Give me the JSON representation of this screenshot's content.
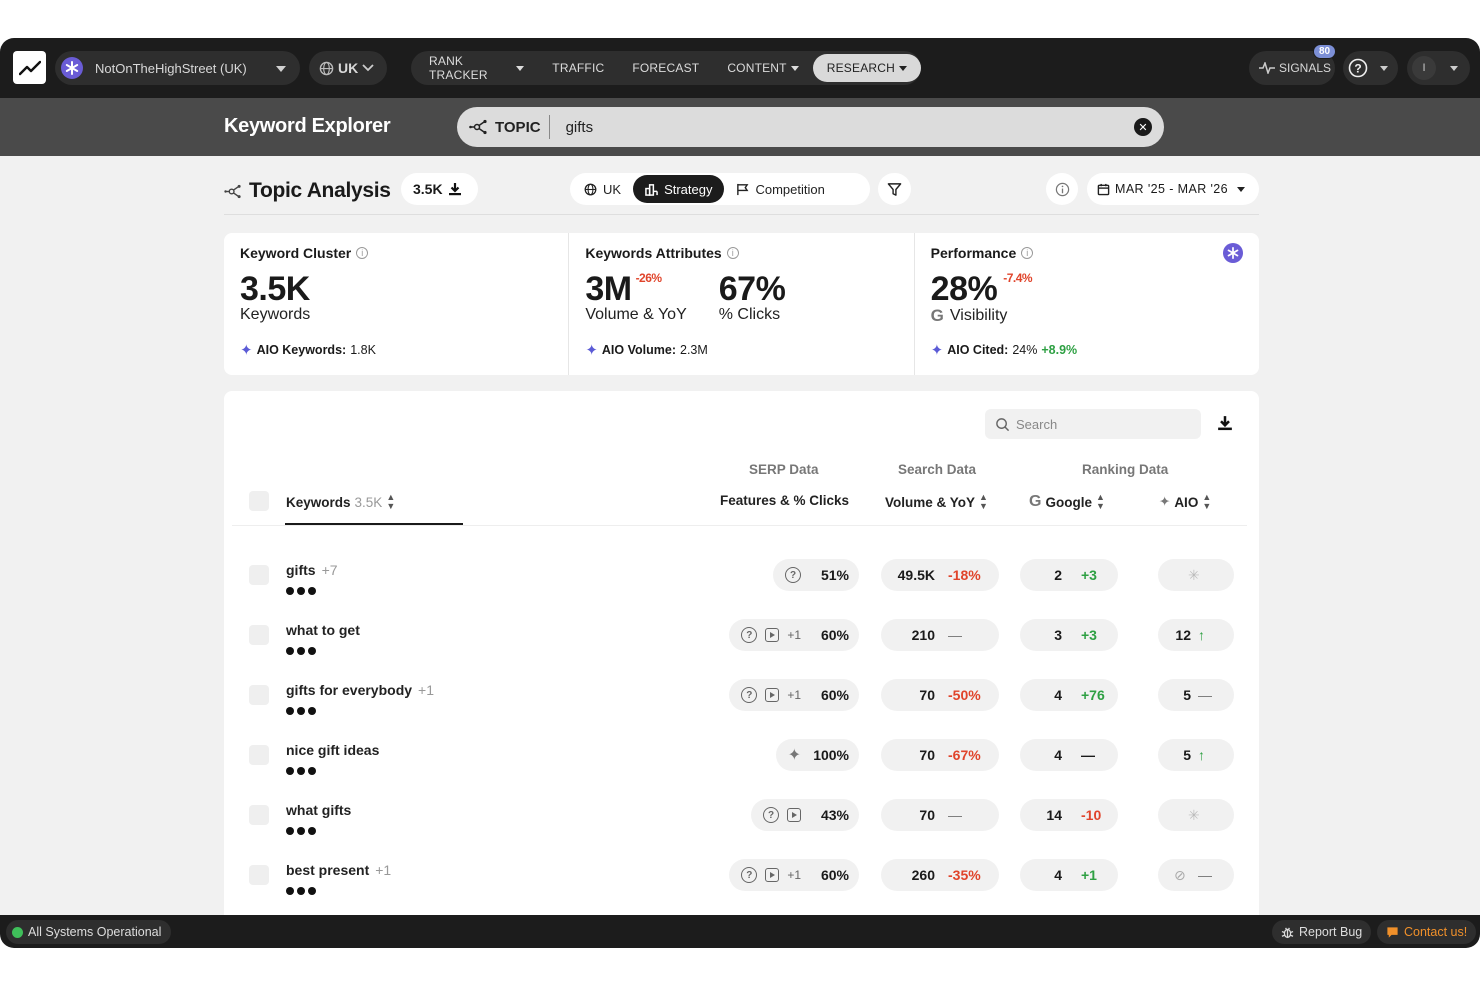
{
  "nav": {
    "project": "NotOnTheHighStreet (UK)",
    "region": "UK",
    "menu": [
      {
        "label": "RANK TRACKER",
        "caret": true,
        "active": false
      },
      {
        "label": "TRAFFIC",
        "caret": false,
        "active": false
      },
      {
        "label": "FORECAST",
        "caret": false,
        "active": false
      },
      {
        "label": "CONTENT",
        "caret": true,
        "active": false
      },
      {
        "label": "RESEARCH",
        "caret": true,
        "active": true
      }
    ],
    "signals_label": "SIGNALS",
    "signals_badge": "80",
    "user_initial": "I"
  },
  "subheader": {
    "title": "Keyword Explorer",
    "search_mode": "TOPIC",
    "search_query": "gifts"
  },
  "analysis": {
    "title": "Topic Analysis",
    "count": "3.5K",
    "region_tab": "UK",
    "tabs": [
      "Strategy",
      "Competition"
    ],
    "active_tab": "Strategy",
    "date_range": "MAR '25 - MAR '26"
  },
  "cards": {
    "cluster": {
      "title": "Keyword Cluster",
      "value": "3.5K",
      "sub": "Keywords",
      "aio_label": "AIO Keywords:",
      "aio_value": "1.8K"
    },
    "attributes": {
      "title": "Keywords Attributes",
      "volume": "3M",
      "volume_delta": "-26%",
      "volume_sub": "Volume & YoY",
      "clicks": "67%",
      "clicks_sub": "% Clicks",
      "aio_label": "AIO Volume:",
      "aio_value": "2.3M"
    },
    "performance": {
      "title": "Performance",
      "value": "28%",
      "delta": "-7.4%",
      "sub": "Visibility",
      "aio_label": "AIO Cited:",
      "aio_value": "24%",
      "aio_delta": "+8.9%"
    }
  },
  "table": {
    "search_placeholder": "Search",
    "groups": {
      "serp": "SERP Data",
      "search": "Search Data",
      "ranking": "Ranking Data"
    },
    "headers": {
      "keywords": "Keywords",
      "keywords_count": "3.5K",
      "features": "Features & % Clicks",
      "volume": "Volume & YoY",
      "google": "Google",
      "aio": "AIO"
    },
    "rows": [
      {
        "keyword": "gifts",
        "extra": "+7",
        "serp_icons": [
          "help"
        ],
        "serp_extra": "",
        "clicks": "51%",
        "volume": "49.5K",
        "yoy": "-18%",
        "yoy_tone": "red",
        "google": "2",
        "google_delta": "+3",
        "google_tone": "green",
        "aio": "",
        "aio_delta": "",
        "aio_tone": "none"
      },
      {
        "keyword": "what to get",
        "extra": "",
        "serp_icons": [
          "help",
          "video"
        ],
        "serp_extra": "+1",
        "clicks": "60%",
        "volume": "210",
        "yoy": "—",
        "yoy_tone": "dash",
        "google": "3",
        "google_delta": "+3",
        "google_tone": "green",
        "aio": "12",
        "aio_delta": "↑",
        "aio_tone": "green"
      },
      {
        "keyword": "gifts for everybody",
        "extra": "+1",
        "serp_icons": [
          "help",
          "video"
        ],
        "serp_extra": "+1",
        "clicks": "60%",
        "volume": "70",
        "yoy": "-50%",
        "yoy_tone": "red",
        "google": "4",
        "google_delta": "+76",
        "google_tone": "green",
        "aio": "5",
        "aio_delta": "—",
        "aio_tone": "dash"
      },
      {
        "keyword": "nice gift ideas",
        "extra": "",
        "serp_icons": [
          "sparkle"
        ],
        "serp_extra": "",
        "clicks": "100%",
        "volume": "70",
        "yoy": "-67%",
        "yoy_tone": "red",
        "google": "4",
        "google_delta": "—",
        "google_tone": "dark",
        "aio": "5",
        "aio_delta": "↑",
        "aio_tone": "green"
      },
      {
        "keyword": "what gifts",
        "extra": "",
        "serp_icons": [
          "help",
          "video"
        ],
        "serp_extra": "",
        "clicks": "43%",
        "volume": "70",
        "yoy": "—",
        "yoy_tone": "dash",
        "google": "14",
        "google_delta": "-10",
        "google_tone": "red",
        "aio": "",
        "aio_delta": "",
        "aio_tone": "none"
      },
      {
        "keyword": "best present",
        "extra": "+1",
        "serp_icons": [
          "help",
          "video"
        ],
        "serp_extra": "+1",
        "clicks": "60%",
        "volume": "260",
        "yoy": "-35%",
        "yoy_tone": "red",
        "google": "4",
        "google_delta": "+1",
        "google_tone": "green",
        "aio": "",
        "aio_delta": "—",
        "aio_tone": "unlinked"
      }
    ]
  },
  "footer": {
    "status": "All Systems Operational",
    "report_bug": "Report Bug",
    "contact": "Contact us!"
  },
  "colors": {
    "accent": "#5b5bd6",
    "red": "#e0442b",
    "green": "#2ea043",
    "status_green": "#3fbf5a",
    "contact_orange": "#f0902a"
  }
}
